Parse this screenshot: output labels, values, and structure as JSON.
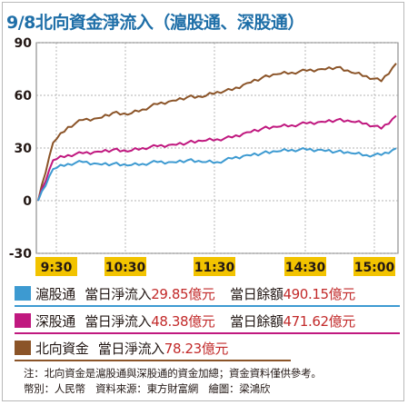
{
  "title": "9/8北向資金淨流入（滬股通、深股通）",
  "chart_data": {
    "type": "line",
    "ylim": [
      -30,
      90
    ],
    "yticks": [
      "90",
      "60",
      "30",
      "0",
      "-30"
    ],
    "ytick_values": [
      90,
      60,
      30,
      0,
      -30
    ],
    "x_tick_labels": [
      "9:30",
      "10:30",
      "11:30",
      "14:30",
      "15:00"
    ],
    "x": [
      "9:30",
      "9:40",
      "9:50",
      "10:00",
      "10:10",
      "10:20",
      "10:30",
      "10:40",
      "10:50",
      "11:00",
      "11:10",
      "11:20",
      "11:30",
      "13:10",
      "13:20",
      "13:30",
      "13:40",
      "13:50",
      "14:00",
      "14:10",
      "14:20",
      "14:30",
      "14:40",
      "14:50",
      "15:00"
    ],
    "grid": true,
    "series": [
      {
        "name": "北向資金",
        "color": "#8b5428",
        "values": [
          0,
          33,
          42,
          46,
          47,
          50,
          49,
          52,
          55,
          57,
          59,
          59,
          62,
          63,
          67,
          70,
          72,
          73,
          74,
          75,
          76,
          73,
          71,
          68,
          78.23
        ]
      },
      {
        "name": "深股通",
        "color": "#c0187f",
        "values": [
          0,
          23,
          26,
          27,
          28,
          29,
          28,
          30,
          31,
          32,
          33,
          34,
          35,
          36,
          39,
          41,
          42,
          43,
          44,
          45,
          46,
          45,
          44,
          41,
          48.38
        ]
      },
      {
        "name": "滬股通",
        "color": "#3d9ad1",
        "values": [
          0,
          18,
          21,
          22,
          21,
          21,
          20,
          21,
          22,
          22,
          23,
          22,
          22,
          24,
          26,
          27,
          28,
          29,
          29,
          29,
          28,
          27,
          26,
          26,
          29.85
        ]
      }
    ]
  },
  "legend": [
    {
      "name": "滬股通",
      "color": "#3d9ad1",
      "flow_label": "當日淨流入",
      "flow_value": "29.85億元",
      "balance_label": "當日餘額",
      "balance_value": "490.15億元"
    },
    {
      "name": "深股通",
      "color": "#c0187f",
      "flow_label": "當日淨流入",
      "flow_value": "48.38億元",
      "balance_label": "當日餘額",
      "balance_value": "471.62億元"
    },
    {
      "name": "北向資金",
      "color": "#8b5428",
      "flow_label": "當日淨流入",
      "flow_value": "78.23億元"
    }
  ],
  "notes": {
    "line1": "注：北向資金是滬股通與深股通的資金加總；資金資料僅供參考。",
    "line2": "幣別：人民幣　資料來源：東方財富網　繪圖：梁鴻欣"
  }
}
